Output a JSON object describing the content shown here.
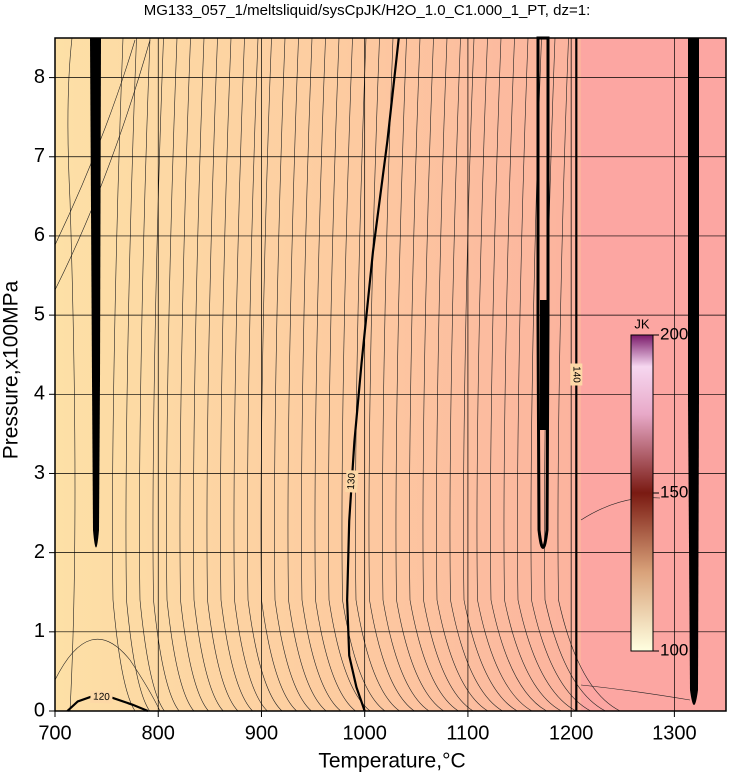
{
  "chart_data": {
    "type": "contour",
    "title": "MG133_057_1/meltsliquid/sysCpJK/H2O_1.0_C1.000_1_PT, dz=1:",
    "x_label": "Temperature,°C",
    "y_label": "Pressure,x100MPa",
    "xlim": [
      700,
      1350
    ],
    "ylim": [
      0,
      8.5
    ],
    "xticks": [
      700,
      800,
      900,
      1000,
      1100,
      1200,
      1300
    ],
    "yticks": [
      0,
      1,
      2,
      3,
      4,
      5,
      6,
      7,
      8
    ],
    "grid": true,
    "contours": [
      {
        "level": 120,
        "x": [
          712,
          722,
          735,
          755,
          775,
          790
        ],
        "y": [
          0,
          0.12,
          0.18,
          0.17,
          0.08,
          0
        ]
      },
      {
        "level": 130,
        "x": [
          1033,
          1022,
          1008,
          997,
          990,
          985,
          983,
          985,
          992,
          1000
        ],
        "y": [
          8.5,
          7.2,
          5.8,
          4.4,
          3.4,
          2.4,
          1.4,
          0.7,
          0.3,
          0
        ]
      },
      {
        "level": 140,
        "x": [
          1205,
          1205
        ],
        "y": [
          8.5,
          0
        ]
      }
    ],
    "colorbar": {
      "label": "JK",
      "lim": [
        100,
        200
      ],
      "ticks": [
        100,
        150,
        200
      ]
    }
  }
}
